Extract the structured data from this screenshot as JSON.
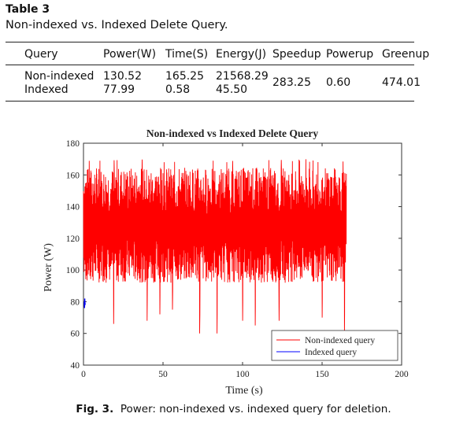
{
  "table": {
    "label": "Table 3",
    "caption": "Non-indexed vs. Indexed Delete Query.",
    "headers": [
      "Query",
      "Power(W)",
      "Time(S)",
      "Energy(J)",
      "Speedup",
      "Powerup",
      "Greenup"
    ],
    "rows": [
      [
        "Non-indexed",
        "130.52",
        "165.25",
        "21568.29"
      ],
      [
        "Indexed",
        "77.99",
        "0.58",
        "45.50"
      ]
    ],
    "merged": {
      "speedup": "283.25",
      "powerup": "0.60",
      "greenup": "474.01"
    }
  },
  "figure": {
    "label": "Fig. 3.",
    "caption": "Power: non-indexed vs. indexed query for deletion."
  },
  "chart_data": {
    "type": "line",
    "title": "Non-indexed vs Indexed Delete Query",
    "xlabel": "Time (s)",
    "ylabel": "Power (W)",
    "xlim": [
      0,
      200
    ],
    "ylim": [
      40,
      180
    ],
    "xticks": [
      "0",
      "50",
      "100",
      "150",
      "200"
    ],
    "yticks": [
      "40",
      "60",
      "80",
      "100",
      "120",
      "140",
      "160",
      "180"
    ],
    "legend_position": "bottom-right",
    "series": [
      {
        "name": "Non-indexed query",
        "color": "#ff0000",
        "x_range": [
          0,
          165.25
        ],
        "mean": 130.52,
        "dips": [
          {
            "t": 19,
            "v": 66
          },
          {
            "t": 40,
            "v": 68
          },
          {
            "t": 48,
            "v": 72
          },
          {
            "t": 56,
            "v": 75
          },
          {
            "t": 73,
            "v": 60
          },
          {
            "t": 84,
            "v": 60
          },
          {
            "t": 100,
            "v": 68
          },
          {
            "t": 108,
            "v": 65
          },
          {
            "t": 123,
            "v": 68
          },
          {
            "t": 150,
            "v": 70
          },
          {
            "t": 164,
            "v": 60
          }
        ]
      },
      {
        "name": "Indexed query",
        "color": "#0000ff",
        "x": [
          0,
          0.15,
          0.3,
          0.45,
          0.58
        ],
        "y": [
          80,
          76,
          82,
          78,
          79
        ]
      }
    ]
  }
}
